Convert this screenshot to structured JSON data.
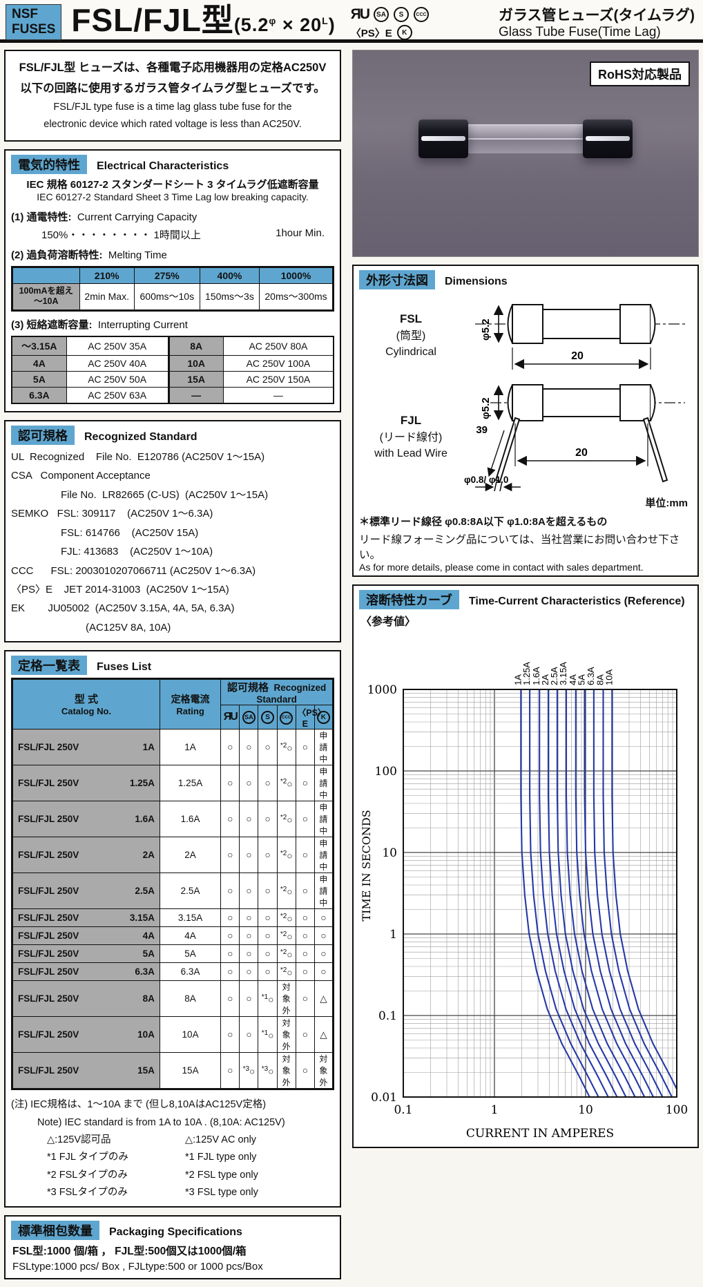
{
  "colors": {
    "accent": "#5ea6cf",
    "cell_gray": "#aaaaaa",
    "curve_blue": "#2438a6"
  },
  "header": {
    "logo_line1": "NSF",
    "logo_line2": "FUSES",
    "title_name": "FSL/FJL型",
    "title_p1": "(5.2",
    "title_sup1": "φ",
    "title_p2": " × 20",
    "title_sup2": "L",
    "title_p3": ")",
    "marks": {
      "ul": "ЯU",
      "csa": "SA",
      "semko": "S",
      "ccc": "CCC",
      "pse": "〈PS〉E",
      "ek": "K"
    },
    "product_jp": "ガラス管ヒューズ(タイムラグ)",
    "product_en": "Glass Tube Fuse(Time Lag)"
  },
  "intro": {
    "jp1": "FSL/FJL型 ヒューズは、各種電子応用機器用の定格AC250V",
    "jp2": "以下の回路に使用するガラス管タイムラグ型ヒューズです。",
    "en1": "FSL/FJL type fuse is a time lag glass tube fuse for the",
    "en2": "electronic device which rated voltage is less than AC250V."
  },
  "electrical": {
    "label_jp": "電気的特性",
    "label_en": "Electrical Characteristics",
    "iec_jp": "IEC 規格 60127-2  スタンダードシート 3   タイムラグ低遮断容量",
    "iec_en": "IEC 60127-2 Standard Sheet 3 Time Lag low breaking capacity.",
    "item1_jp": "(1) 通電特性:",
    "item1_en": "Current Carrying Capacity",
    "item1_line": "150%・・・・・・・・ 1時間以上",
    "item1_right": "1hour Min.",
    "item2_jp": "(2) 過負荷溶断特性:",
    "item2_en": "Melting Time",
    "melting": {
      "headers": [
        "",
        "210%",
        "275%",
        "400%",
        "1000%"
      ],
      "row_label1": "100mAを超え",
      "row_label2": "〜10A",
      "values": [
        "2min Max.",
        "600ms〜10s",
        "150ms〜3s",
        "20ms〜300ms"
      ]
    },
    "item3_jp": "(3) 短絡遮断容量:",
    "item3_en": "Interrupting Current",
    "interrupting_rows": [
      [
        "〜3.15A",
        "AC  250V   35A",
        "8A",
        "AC  250V   80A"
      ],
      [
        "4A",
        "AC  250V   40A",
        "10A",
        "AC  250V  100A"
      ],
      [
        "5A",
        "AC  250V   50A",
        "15A",
        "AC  250V  150A"
      ],
      [
        "6.3A",
        "AC  250V   63A",
        "—",
        "—"
      ]
    ]
  },
  "recognized": {
    "label_jp": "認可規格",
    "label_en": "Recognized Standard",
    "lines": [
      {
        "t": "UL  Recognized    File No.  E120786 (AC250V 1〜15A)",
        "ind": 0
      },
      {
        "t": "CSA   Component Acceptance",
        "ind": 0
      },
      {
        "t": "File No.  LR82665 (C-US)  (AC250V 1〜15A)",
        "ind": 2
      },
      {
        "t": "SEMKO   FSL: 309117    (AC250V 1〜6.3A)",
        "ind": 0
      },
      {
        "t": "FSL: 614766    (AC250V 15A)",
        "ind": 2
      },
      {
        "t": "FJL: 413683    (AC250V 1〜10A)",
        "ind": 2
      },
      {
        "t": "CCC      FSL: 2003010207066711 (AC250V 1〜6.3A)",
        "ind": 0
      },
      {
        "t": "〈PS〉E    JET 2014-31003  (AC250V 1〜15A)",
        "ind": 0
      },
      {
        "t": "EK        JU05002  (AC250V 3.15A, 4A, 5A, 6.3A)",
        "ind": 0
      },
      {
        "t": "(AC125V 8A, 10A)",
        "ind": 3
      }
    ]
  },
  "fuses_list": {
    "label_jp": "定格一覧表",
    "label_en": "Fuses List",
    "col1_jp": "型  式",
    "col1_en": "Catalog No.",
    "col2_jp": "定格電流",
    "col2_en": "Rating",
    "group_jp": "認可規格",
    "group_en": "Recognized Standard",
    "rows": [
      {
        "catalog": "FSL/FJL 250V",
        "amp": "1A",
        "rating": "1A",
        "marks": [
          "○",
          "○",
          "○",
          "*2○",
          "○",
          "申請中"
        ]
      },
      {
        "catalog": "FSL/FJL 250V",
        "amp": "1.25A",
        "rating": "1.25A",
        "marks": [
          "○",
          "○",
          "○",
          "*2○",
          "○",
          "申請中"
        ]
      },
      {
        "catalog": "FSL/FJL 250V",
        "amp": "1.6A",
        "rating": "1.6A",
        "marks": [
          "○",
          "○",
          "○",
          "*2○",
          "○",
          "申請中"
        ]
      },
      {
        "catalog": "FSL/FJL 250V",
        "amp": "2A",
        "rating": "2A",
        "marks": [
          "○",
          "○",
          "○",
          "*2○",
          "○",
          "申請中"
        ]
      },
      {
        "catalog": "FSL/FJL 250V",
        "amp": "2.5A",
        "rating": "2.5A",
        "marks": [
          "○",
          "○",
          "○",
          "*2○",
          "○",
          "申請中"
        ]
      },
      {
        "catalog": "FSL/FJL 250V",
        "amp": "3.15A",
        "rating": "3.15A",
        "marks": [
          "○",
          "○",
          "○",
          "*2○",
          "○",
          "○"
        ]
      },
      {
        "catalog": "FSL/FJL 250V",
        "amp": "4A",
        "rating": "4A",
        "marks": [
          "○",
          "○",
          "○",
          "*2○",
          "○",
          "○"
        ]
      },
      {
        "catalog": "FSL/FJL 250V",
        "amp": "5A",
        "rating": "5A",
        "marks": [
          "○",
          "○",
          "○",
          "*2○",
          "○",
          "○"
        ]
      },
      {
        "catalog": "FSL/FJL 250V",
        "amp": "6.3A",
        "rating": "6.3A",
        "marks": [
          "○",
          "○",
          "○",
          "*2○",
          "○",
          "○"
        ]
      },
      {
        "catalog": "FSL/FJL 250V",
        "amp": "8A",
        "rating": "8A",
        "marks": [
          "○",
          "○",
          "*1○",
          "対象外",
          "○",
          "△"
        ]
      },
      {
        "catalog": "FSL/FJL 250V",
        "amp": "10A",
        "rating": "10A",
        "marks": [
          "○",
          "○",
          "*1○",
          "対象外",
          "○",
          "△"
        ]
      },
      {
        "catalog": "FSL/FJL 250V",
        "amp": "15A",
        "rating": "15A",
        "marks": [
          "○",
          "*3○",
          "*3○",
          "対象外",
          "○",
          "対象外"
        ]
      }
    ]
  },
  "notes": {
    "jp": "(注)  IEC規格は、1〜10A まで (但し8,10AはAC125V定格)",
    "en": "Note)   IEC standard is from 1A to 10A . (8,10A: AC125V)",
    "pairs": [
      [
        "△:125V認可品",
        "△:125V AC only"
      ],
      [
        "*1  FJL タイプのみ",
        "*1  FJL type only"
      ],
      [
        "*2  FSLタイプのみ",
        "*2  FSL type only"
      ],
      [
        "*3  FSLタイプのみ",
        "*3  FSL type only"
      ]
    ]
  },
  "packaging": {
    "label_jp": "標準梱包数量",
    "label_en": "Packaging Specifications",
    "line_jp": "FSL型:1000 個/箱  ，   FJL型:500個又は1000個/箱",
    "line_en": "FSLtype:1000 pcs/ Box ,   FJLtype:500 or 1000 pcs/Box"
  },
  "photo": {
    "rohs_label": "RoHS対応製品"
  },
  "dimensions": {
    "label_jp": "外形寸法図",
    "label_en": "Dimensions",
    "fsl_name": "FSL",
    "fsl_jp": "(筒型)",
    "fsl_en": "Cylindrical",
    "fjl_name": "FJL",
    "fjl_jp": "(リード線付)",
    "fjl_en": "with Lead Wire",
    "dia": "φ5.2",
    "len": "20",
    "lead_len": "39",
    "lead_dia": "φ0.8/ φ1.0",
    "unit": "単位:mm",
    "note1": "＊標準リード線径    φ0.8:8A以下    φ1.0:8Aを超えるもの",
    "note2_jp": "リード線フォーミング品については、当社営業にお問い合わせ下さい。",
    "note2_en": "As for more details, please come in contact with sales department."
  },
  "chart": {
    "label_jp": "溶断特性カーブ",
    "label_en": "Time-Current  Characteristics (Reference)",
    "ref": "〈参考値〉"
  },
  "chart_data": {
    "type": "line",
    "title": "Time-Current Characteristics (Reference)",
    "xlabel": "CURRENT IN AMPERES",
    "ylabel": "TIME IN SECONDS",
    "xscale": "log",
    "yscale": "log",
    "xlim": [
      0.1,
      100
    ],
    "ylim": [
      0.01,
      1000
    ],
    "x_tick_labels": [
      "0.1",
      "1",
      "10",
      "100"
    ],
    "y_tick_labels": [
      "1000",
      "100",
      "10",
      "1",
      "0.1",
      "0.01"
    ],
    "grid": "log major+minor",
    "legend_position": "labels rotated above curves",
    "series": [
      {
        "name": "1A",
        "points": [
          [
            1.95,
            1000
          ],
          [
            1.95,
            50
          ],
          [
            2.0,
            10
          ],
          [
            2.15,
            3
          ],
          [
            2.4,
            1
          ],
          [
            2.9,
            0.35
          ],
          [
            3.8,
            0.12
          ],
          [
            5.5,
            0.045
          ],
          [
            8.5,
            0.018
          ],
          [
            13,
            0.007
          ],
          [
            20,
            0.003
          ]
        ]
      },
      {
        "name": "1.25A",
        "points": [
          [
            2.44,
            1000
          ],
          [
            2.44,
            50
          ],
          [
            2.5,
            10
          ],
          [
            2.69,
            3
          ],
          [
            3.0,
            1
          ],
          [
            3.63,
            0.35
          ],
          [
            4.75,
            0.12
          ],
          [
            6.88,
            0.045
          ],
          [
            10.6,
            0.018
          ],
          [
            16.3,
            0.007
          ],
          [
            25,
            0.003
          ]
        ]
      },
      {
        "name": "1.6A",
        "points": [
          [
            3.12,
            1000
          ],
          [
            3.12,
            50
          ],
          [
            3.2,
            10
          ],
          [
            3.44,
            3
          ],
          [
            3.84,
            1
          ],
          [
            4.64,
            0.35
          ],
          [
            6.08,
            0.12
          ],
          [
            8.8,
            0.045
          ],
          [
            13.6,
            0.018
          ],
          [
            20.8,
            0.007
          ],
          [
            32,
            0.003
          ]
        ]
      },
      {
        "name": "2A",
        "points": [
          [
            3.9,
            1000
          ],
          [
            3.9,
            50
          ],
          [
            4.0,
            10
          ],
          [
            4.3,
            3
          ],
          [
            4.8,
            1
          ],
          [
            5.8,
            0.35
          ],
          [
            7.6,
            0.12
          ],
          [
            11,
            0.045
          ],
          [
            17,
            0.018
          ],
          [
            26,
            0.007
          ],
          [
            40,
            0.003
          ]
        ]
      },
      {
        "name": "2.5A",
        "points": [
          [
            4.88,
            1000
          ],
          [
            4.88,
            50
          ],
          [
            5.0,
            10
          ],
          [
            5.38,
            3
          ],
          [
            6.0,
            1
          ],
          [
            7.25,
            0.35
          ],
          [
            9.5,
            0.12
          ],
          [
            13.8,
            0.045
          ],
          [
            21.3,
            0.018
          ],
          [
            32.5,
            0.007
          ],
          [
            50,
            0.003
          ]
        ]
      },
      {
        "name": "3.15A",
        "points": [
          [
            6.14,
            1000
          ],
          [
            6.14,
            50
          ],
          [
            6.3,
            10
          ],
          [
            6.77,
            3
          ],
          [
            7.56,
            1
          ],
          [
            9.14,
            0.35
          ],
          [
            11.97,
            0.12
          ],
          [
            17.3,
            0.045
          ],
          [
            26.8,
            0.018
          ],
          [
            41,
            0.007
          ],
          [
            63,
            0.003
          ]
        ]
      },
      {
        "name": "4A",
        "points": [
          [
            7.8,
            1000
          ],
          [
            7.8,
            50
          ],
          [
            8.0,
            10
          ],
          [
            8.6,
            3
          ],
          [
            9.6,
            1
          ],
          [
            11.6,
            0.35
          ],
          [
            15.2,
            0.12
          ],
          [
            22,
            0.045
          ],
          [
            34,
            0.018
          ],
          [
            52,
            0.007
          ],
          [
            80,
            0.003
          ]
        ]
      },
      {
        "name": "5A",
        "points": [
          [
            9.75,
            1000
          ],
          [
            9.75,
            50
          ],
          [
            10,
            10
          ],
          [
            10.75,
            3
          ],
          [
            12,
            1
          ],
          [
            14.5,
            0.35
          ],
          [
            19,
            0.12
          ],
          [
            27.5,
            0.045
          ],
          [
            42.5,
            0.018
          ],
          [
            65,
            0.007
          ],
          [
            100,
            0.003
          ]
        ]
      },
      {
        "name": "6.3A",
        "points": [
          [
            12.3,
            1000
          ],
          [
            12.3,
            50
          ],
          [
            12.6,
            10
          ],
          [
            13.5,
            3
          ],
          [
            15.1,
            1
          ],
          [
            18.3,
            0.35
          ],
          [
            23.9,
            0.12
          ],
          [
            34.7,
            0.045
          ],
          [
            53.6,
            0.018
          ],
          [
            81.9,
            0.007
          ],
          [
            126,
            0.003
          ]
        ]
      },
      {
        "name": "8A",
        "points": [
          [
            15.6,
            1000
          ],
          [
            15.6,
            50
          ],
          [
            16,
            10
          ],
          [
            17.2,
            3
          ],
          [
            19.2,
            1
          ],
          [
            23.2,
            0.35
          ],
          [
            30.4,
            0.12
          ],
          [
            44,
            0.045
          ],
          [
            68,
            0.018
          ],
          [
            104,
            0.007
          ],
          [
            160,
            0.003
          ]
        ]
      },
      {
        "name": "10A",
        "points": [
          [
            19.5,
            1000
          ],
          [
            19.5,
            50
          ],
          [
            20,
            10
          ],
          [
            21.5,
            3
          ],
          [
            24,
            1
          ],
          [
            29,
            0.35
          ],
          [
            38,
            0.12
          ],
          [
            55,
            0.045
          ],
          [
            85,
            0.018
          ],
          [
            130,
            0.007
          ],
          [
            200,
            0.003
          ]
        ]
      }
    ]
  }
}
